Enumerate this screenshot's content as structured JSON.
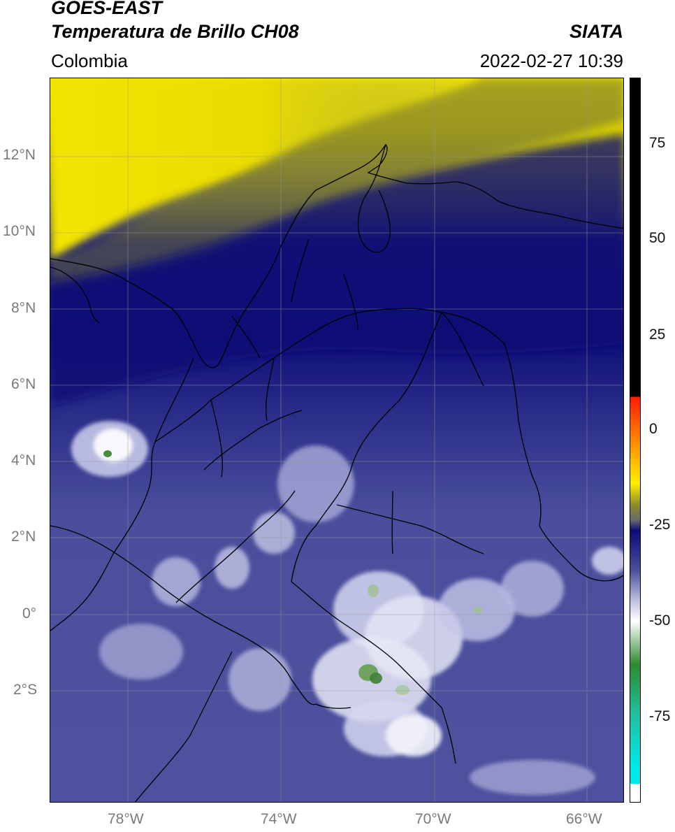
{
  "header": {
    "satellite": "GOES-EAST",
    "product": "Temperatura de Brillo CH08",
    "source": "SIATA",
    "region": "Colombia",
    "datetime": "2022-02-27 10:39"
  },
  "axes": {
    "lat_labels": [
      "12°N",
      "10°N",
      "8°N",
      "6°N",
      "4°N",
      "2°N",
      "0°",
      "2°S"
    ],
    "lon_labels": [
      "78°W",
      "74°W",
      "70°W",
      "66°W"
    ]
  },
  "colorbar": {
    "ticks": [
      "75",
      "50",
      "25",
      "0",
      "-25",
      "-50",
      "-75"
    ],
    "colors": {
      "black": "#000000",
      "red": "#ff1a00",
      "orange": "#ff9900",
      "yellow": "#ffee00",
      "olive": "#8a8a2a",
      "gray": "#6b6b6b",
      "navy": "#0c0c7a",
      "slate": "#4b4f9a",
      "lavender": "#b9bbe0",
      "white": "#ffffff",
      "green": "#2e8b2e",
      "teal": "#20c0a0",
      "cyan": "#00e8e8"
    }
  }
}
